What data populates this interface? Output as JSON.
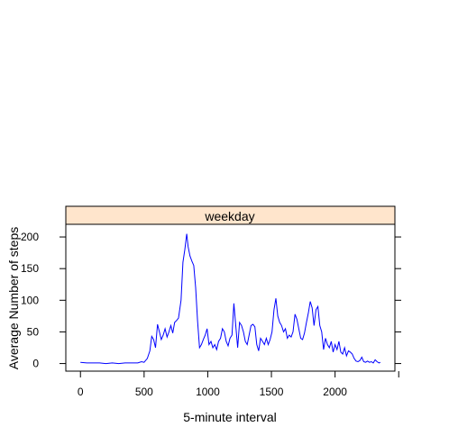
{
  "chart_data": {
    "type": "line",
    "panel_label": "weekday",
    "xlabel": "5-minute interval",
    "ylabel": "Average Number of steps",
    "xlim": [
      -115,
      2470
    ],
    "ylim": [
      -12,
      220
    ],
    "x_ticks": [
      0,
      500,
      1000,
      1500,
      2000
    ],
    "y_ticks": [
      0,
      50,
      100,
      150,
      200
    ],
    "grid": false,
    "line_color": "#0000FF",
    "strip_color": "#FFE5CC",
    "series": [
      {
        "values": [
          [
            0,
            2
          ],
          [
            50,
            1
          ],
          [
            100,
            1
          ],
          [
            150,
            1
          ],
          [
            200,
            0
          ],
          [
            250,
            1
          ],
          [
            300,
            0
          ],
          [
            350,
            1
          ],
          [
            400,
            1
          ],
          [
            450,
            1
          ],
          [
            480,
            3
          ],
          [
            500,
            2
          ],
          [
            525,
            8
          ],
          [
            545,
            20
          ],
          [
            560,
            43
          ],
          [
            575,
            38
          ],
          [
            590,
            25
          ],
          [
            605,
            62
          ],
          [
            620,
            50
          ],
          [
            635,
            38
          ],
          [
            650,
            45
          ],
          [
            665,
            55
          ],
          [
            680,
            42
          ],
          [
            695,
            50
          ],
          [
            710,
            60
          ],
          [
            725,
            48
          ],
          [
            740,
            65
          ],
          [
            755,
            68
          ],
          [
            770,
            72
          ],
          [
            790,
            100
          ],
          [
            805,
            160
          ],
          [
            820,
            180
          ],
          [
            835,
            205
          ],
          [
            845,
            185
          ],
          [
            860,
            170
          ],
          [
            875,
            162
          ],
          [
            890,
            155
          ],
          [
            905,
            120
          ],
          [
            920,
            68
          ],
          [
            935,
            25
          ],
          [
            950,
            30
          ],
          [
            965,
            38
          ],
          [
            980,
            45
          ],
          [
            995,
            55
          ],
          [
            1010,
            30
          ],
          [
            1025,
            35
          ],
          [
            1040,
            25
          ],
          [
            1055,
            30
          ],
          [
            1070,
            22
          ],
          [
            1085,
            35
          ],
          [
            1100,
            40
          ],
          [
            1115,
            55
          ],
          [
            1130,
            50
          ],
          [
            1145,
            35
          ],
          [
            1160,
            28
          ],
          [
            1175,
            40
          ],
          [
            1190,
            45
          ],
          [
            1205,
            95
          ],
          [
            1220,
            60
          ],
          [
            1235,
            25
          ],
          [
            1250,
            65
          ],
          [
            1265,
            60
          ],
          [
            1280,
            50
          ],
          [
            1295,
            35
          ],
          [
            1310,
            30
          ],
          [
            1325,
            45
          ],
          [
            1340,
            60
          ],
          [
            1355,
            62
          ],
          [
            1370,
            58
          ],
          [
            1385,
            30
          ],
          [
            1400,
            20
          ],
          [
            1415,
            40
          ],
          [
            1430,
            35
          ],
          [
            1445,
            30
          ],
          [
            1460,
            40
          ],
          [
            1475,
            30
          ],
          [
            1490,
            38
          ],
          [
            1505,
            50
          ],
          [
            1520,
            85
          ],
          [
            1535,
            103
          ],
          [
            1550,
            75
          ],
          [
            1565,
            65
          ],
          [
            1580,
            60
          ],
          [
            1595,
            50
          ],
          [
            1610,
            55
          ],
          [
            1625,
            40
          ],
          [
            1640,
            45
          ],
          [
            1655,
            42
          ],
          [
            1670,
            50
          ],
          [
            1685,
            78
          ],
          [
            1700,
            70
          ],
          [
            1715,
            55
          ],
          [
            1730,
            40
          ],
          [
            1745,
            38
          ],
          [
            1760,
            48
          ],
          [
            1775,
            65
          ],
          [
            1790,
            80
          ],
          [
            1805,
            98
          ],
          [
            1820,
            88
          ],
          [
            1835,
            60
          ],
          [
            1850,
            85
          ],
          [
            1865,
            90
          ],
          [
            1880,
            60
          ],
          [
            1895,
            50
          ],
          [
            1910,
            22
          ],
          [
            1925,
            40
          ],
          [
            1940,
            30
          ],
          [
            1955,
            25
          ],
          [
            1970,
            35
          ],
          [
            1985,
            18
          ],
          [
            2000,
            30
          ],
          [
            2015,
            22
          ],
          [
            2030,
            35
          ],
          [
            2045,
            18
          ],
          [
            2060,
            15
          ],
          [
            2075,
            25
          ],
          [
            2090,
            12
          ],
          [
            2105,
            20
          ],
          [
            2120,
            18
          ],
          [
            2135,
            15
          ],
          [
            2150,
            8
          ],
          [
            2165,
            4
          ],
          [
            2180,
            3
          ],
          [
            2195,
            5
          ],
          [
            2210,
            10
          ],
          [
            2225,
            3
          ],
          [
            2240,
            2
          ],
          [
            2255,
            4
          ],
          [
            2270,
            2
          ],
          [
            2285,
            3
          ],
          [
            2300,
            1
          ],
          [
            2315,
            6
          ],
          [
            2330,
            3
          ],
          [
            2345,
            1
          ],
          [
            2355,
            2
          ]
        ]
      }
    ]
  }
}
